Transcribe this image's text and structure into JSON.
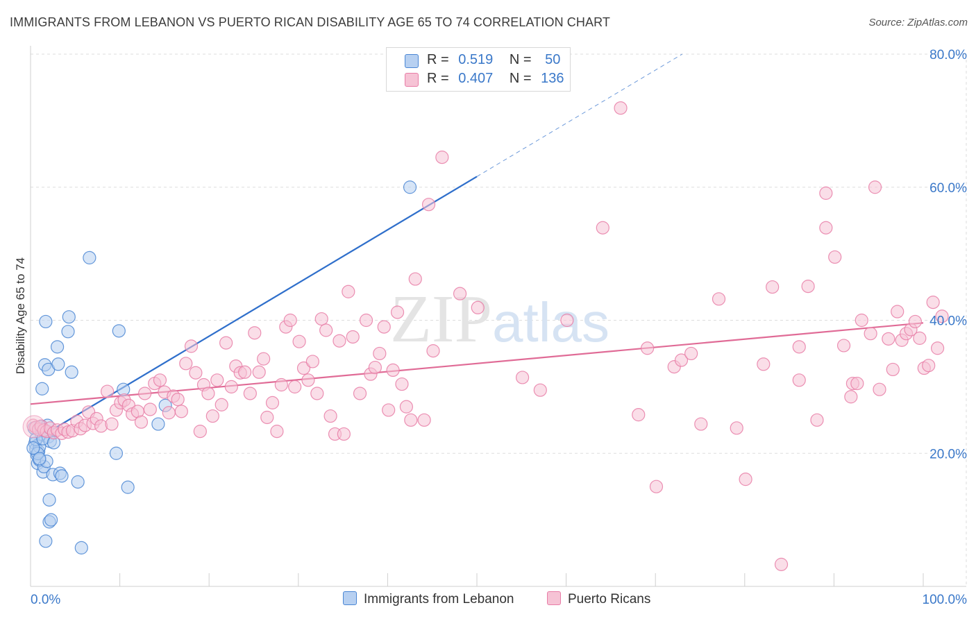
{
  "title": "IMMIGRANTS FROM LEBANON VS PUERTO RICAN DISABILITY AGE 65 TO 74 CORRELATION CHART",
  "source": "Source: ZipAtlas.com",
  "watermark": "ZIPatlas",
  "colors": {
    "blue": "#4a86d4",
    "blue_fill": "#b7d0f1",
    "blue_line": "#2f6fcb",
    "pink": "#e87ca6",
    "pink_fill": "#f6c3d5",
    "pink_line": "#e06b96",
    "axis_text": "#3a78c9",
    "grid": "#dddddd"
  },
  "legend": {
    "r_label": "R =",
    "n_label": "N =",
    "items": [
      {
        "name": "Immigrants from Lebanon",
        "r": "0.519",
        "n": "50",
        "color": "blue"
      },
      {
        "name": "Puerto Ricans",
        "r": "0.407",
        "n": "136",
        "color": "pink"
      }
    ]
  },
  "chart_data": {
    "type": "scatter",
    "title": "IMMIGRANTS FROM LEBANON VS PUERTO RICAN DISABILITY AGE 65 TO 74 CORRELATION CHART",
    "xlabel": "",
    "ylabel": "Disability Age 65 to 74",
    "xlim": [
      0,
      100
    ],
    "ylim": [
      0,
      80
    ],
    "x_tick_labels": [
      "0.0%",
      "100.0%"
    ],
    "y_tick_labels": [
      "20.0%",
      "40.0%",
      "60.0%",
      "80.0%"
    ],
    "y_ticks": [
      20,
      40,
      60,
      80
    ],
    "series": [
      {
        "name": "Immigrants from Lebanon",
        "color": "blue",
        "trend": {
          "x0": 0,
          "y0": 21.6,
          "x1": 50,
          "y1": 61.6,
          "dashed_to_x": 73,
          "dashed_to_y": 80
        },
        "points": [
          [
            0.4,
            23.8
          ],
          [
            0.5,
            21.5
          ],
          [
            0.6,
            20.6
          ],
          [
            0.7,
            19.8
          ],
          [
            0.8,
            18.5
          ],
          [
            0.9,
            20.3
          ],
          [
            1.0,
            21.0
          ],
          [
            1.0,
            19.0
          ],
          [
            1.1,
            24.0
          ],
          [
            1.2,
            22.9
          ],
          [
            1.3,
            29.7
          ],
          [
            1.4,
            17.2
          ],
          [
            1.5,
            18.0
          ],
          [
            1.5,
            23.4
          ],
          [
            1.6,
            33.3
          ],
          [
            1.7,
            39.8
          ],
          [
            1.8,
            18.8
          ],
          [
            2.0,
            32.6
          ],
          [
            2.0,
            22.5
          ],
          [
            2.2,
            21.8
          ],
          [
            2.1,
            13.0
          ],
          [
            1.7,
            6.8
          ],
          [
            2.1,
            9.7
          ],
          [
            2.3,
            10.0
          ],
          [
            2.5,
            16.8
          ],
          [
            3.0,
            36.0
          ],
          [
            3.1,
            33.4
          ],
          [
            3.3,
            17.0
          ],
          [
            3.5,
            16.6
          ],
          [
            4.2,
            38.3
          ],
          [
            4.3,
            40.5
          ],
          [
            4.6,
            32.2
          ],
          [
            5.3,
            15.7
          ],
          [
            5.7,
            5.8
          ],
          [
            6.6,
            49.4
          ],
          [
            9.6,
            20.0
          ],
          [
            9.9,
            38.4
          ],
          [
            10.4,
            29.6
          ],
          [
            10.9,
            14.9
          ],
          [
            14.3,
            24.4
          ],
          [
            15.1,
            27.2
          ],
          [
            42.5,
            60.0
          ],
          [
            0.6,
            22.1
          ],
          [
            0.8,
            20.0
          ],
          [
            1.2,
            24.0
          ],
          [
            1.9,
            24.2
          ],
          [
            1.0,
            19.2
          ],
          [
            1.4,
            22.2
          ],
          [
            2.6,
            21.6
          ],
          [
            0.3,
            20.8
          ]
        ]
      },
      {
        "name": "Puerto Ricans",
        "color": "pink",
        "trend": {
          "x0": 0,
          "y0": 27.4,
          "x1": 100,
          "y1": 39.6
        },
        "points": [
          [
            0.3,
            24.2
          ],
          [
            0.6,
            23.9
          ],
          [
            0.9,
            23.6
          ],
          [
            1.2,
            24.1
          ],
          [
            1.5,
            23.5
          ],
          [
            1.8,
            23.3
          ],
          [
            2.2,
            23.8
          ],
          [
            2.6,
            23.1
          ],
          [
            3.0,
            23.5
          ],
          [
            3.5,
            23.0
          ],
          [
            3.8,
            23.6
          ],
          [
            4.2,
            23.2
          ],
          [
            4.7,
            23.4
          ],
          [
            5.2,
            24.8
          ],
          [
            5.6,
            23.7
          ],
          [
            6.1,
            24.2
          ],
          [
            6.5,
            26.2
          ],
          [
            7.0,
            24.5
          ],
          [
            7.4,
            25.2
          ],
          [
            7.9,
            24.1
          ],
          [
            8.6,
            29.3
          ],
          [
            9.1,
            24.4
          ],
          [
            9.6,
            26.5
          ],
          [
            10.1,
            27.6
          ],
          [
            10.5,
            28.0
          ],
          [
            11.0,
            27.2
          ],
          [
            11.4,
            25.9
          ],
          [
            12.0,
            26.3
          ],
          [
            12.4,
            24.7
          ],
          [
            12.8,
            29.0
          ],
          [
            13.4,
            26.6
          ],
          [
            13.9,
            30.5
          ],
          [
            14.5,
            31.0
          ],
          [
            15.0,
            29.2
          ],
          [
            15.5,
            26.1
          ],
          [
            16.0,
            28.6
          ],
          [
            16.5,
            28.1
          ],
          [
            16.9,
            26.3
          ],
          [
            17.4,
            33.5
          ],
          [
            18.0,
            36.1
          ],
          [
            18.5,
            32.1
          ],
          [
            19.0,
            23.3
          ],
          [
            19.4,
            30.3
          ],
          [
            19.9,
            29.0
          ],
          [
            20.4,
            25.6
          ],
          [
            20.9,
            31.0
          ],
          [
            21.4,
            27.3
          ],
          [
            21.9,
            36.6
          ],
          [
            22.5,
            30.0
          ],
          [
            23.0,
            33.1
          ],
          [
            23.5,
            32.1
          ],
          [
            24.0,
            32.2
          ],
          [
            24.6,
            29.0
          ],
          [
            25.1,
            38.1
          ],
          [
            25.6,
            32.2
          ],
          [
            26.1,
            34.2
          ],
          [
            26.5,
            25.4
          ],
          [
            27.1,
            27.6
          ],
          [
            27.6,
            23.3
          ],
          [
            28.1,
            30.3
          ],
          [
            28.6,
            39.0
          ],
          [
            29.1,
            40.0
          ],
          [
            29.6,
            30.0
          ],
          [
            30.1,
            36.8
          ],
          [
            30.6,
            32.8
          ],
          [
            31.1,
            31.0
          ],
          [
            31.6,
            33.8
          ],
          [
            32.1,
            29.0
          ],
          [
            32.6,
            40.2
          ],
          [
            33.1,
            38.5
          ],
          [
            33.6,
            25.6
          ],
          [
            34.1,
            22.9
          ],
          [
            34.6,
            36.9
          ],
          [
            35.1,
            22.9
          ],
          [
            35.6,
            44.3
          ],
          [
            36.1,
            37.5
          ],
          [
            36.9,
            29.0
          ],
          [
            37.6,
            40.0
          ],
          [
            38.1,
            31.9
          ],
          [
            38.6,
            32.9
          ],
          [
            39.1,
            35.0
          ],
          [
            39.6,
            39.0
          ],
          [
            40.1,
            26.5
          ],
          [
            40.6,
            32.5
          ],
          [
            41.1,
            41.2
          ],
          [
            41.6,
            30.4
          ],
          [
            42.1,
            27.0
          ],
          [
            42.6,
            25.0
          ],
          [
            43.1,
            46.2
          ],
          [
            44.1,
            25.0
          ],
          [
            44.6,
            57.4
          ],
          [
            45.1,
            35.4
          ],
          [
            46.1,
            64.5
          ],
          [
            48.1,
            44.0
          ],
          [
            50.1,
            41.9
          ],
          [
            55.1,
            31.4
          ],
          [
            57.1,
            29.5
          ],
          [
            60.1,
            40.0
          ],
          [
            64.1,
            53.9
          ],
          [
            66.1,
            71.9
          ],
          [
            68.1,
            25.8
          ],
          [
            69.1,
            35.8
          ],
          [
            70.1,
            15.0
          ],
          [
            72.1,
            33.0
          ],
          [
            72.9,
            34.0
          ],
          [
            74.0,
            35.0
          ],
          [
            75.1,
            24.4
          ],
          [
            77.1,
            43.2
          ],
          [
            79.1,
            23.8
          ],
          [
            80.1,
            16.1
          ],
          [
            82.1,
            33.4
          ],
          [
            83.1,
            45.0
          ],
          [
            84.1,
            3.3
          ],
          [
            86.1,
            31.0
          ],
          [
            86.1,
            36.0
          ],
          [
            87.1,
            45.1
          ],
          [
            88.1,
            25.0
          ],
          [
            89.1,
            59.1
          ],
          [
            89.1,
            53.9
          ],
          [
            90.1,
            49.5
          ],
          [
            91.1,
            36.2
          ],
          [
            91.9,
            28.5
          ],
          [
            92.1,
            30.5
          ],
          [
            92.6,
            30.5
          ],
          [
            93.1,
            40.0
          ],
          [
            94.1,
            38.0
          ],
          [
            94.6,
            60.0
          ],
          [
            95.1,
            29.6
          ],
          [
            96.1,
            37.2
          ],
          [
            96.6,
            32.6
          ],
          [
            97.1,
            41.3
          ],
          [
            97.6,
            37.0
          ],
          [
            98.1,
            38.0
          ],
          [
            98.6,
            38.6
          ],
          [
            99.1,
            39.8
          ],
          [
            99.6,
            37.3
          ],
          [
            100.1,
            32.8
          ],
          [
            100.6,
            33.2
          ],
          [
            101.1,
            42.7
          ],
          [
            101.6,
            35.8
          ],
          [
            102.1,
            40.6
          ]
        ]
      }
    ]
  }
}
